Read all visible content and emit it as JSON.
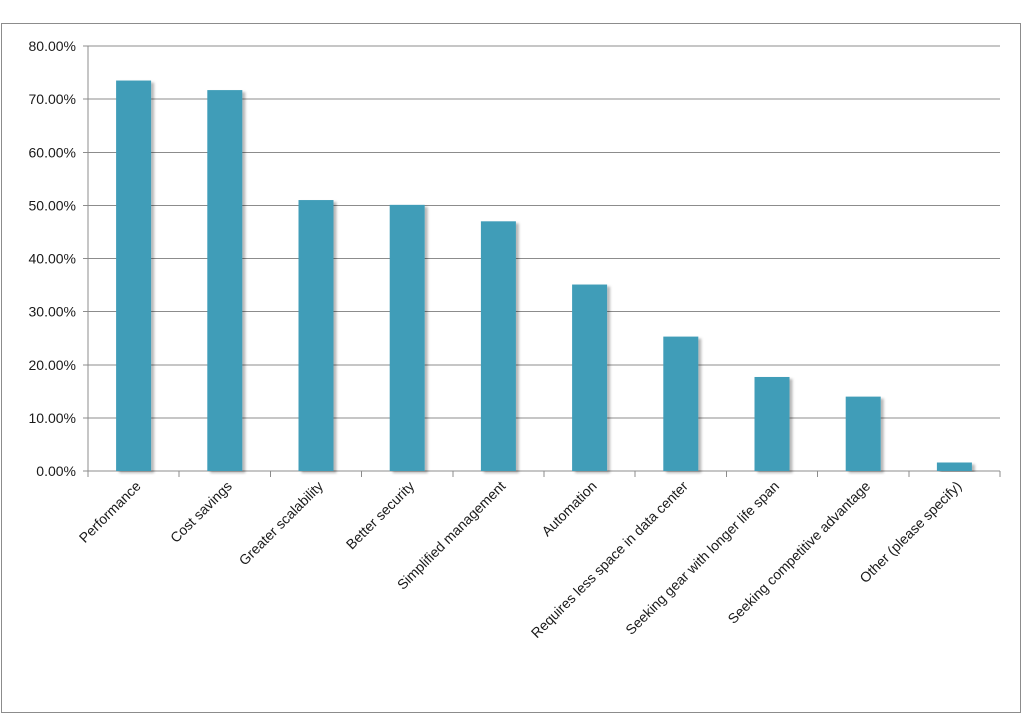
{
  "chart_data": {
    "type": "bar",
    "title": "",
    "xlabel": "",
    "ylabel": "",
    "categories": [
      "Performance",
      "Cost savings",
      "Greater scalability",
      "Better security",
      "Simplified management",
      "Automation",
      "Requires less space in data center",
      "Seeking gear with longer life span",
      "Seeking competitive advantage",
      "Other (please specify)"
    ],
    "values": [
      73.5,
      71.7,
      51.0,
      50.1,
      47.0,
      35.1,
      25.3,
      17.7,
      14.0,
      1.6
    ],
    "ylim": [
      0,
      80
    ],
    "y_ticks": [
      0,
      10,
      20,
      30,
      40,
      50,
      60,
      70,
      80
    ],
    "y_tick_labels": [
      "0.00%",
      "10.00%",
      "20.00%",
      "30.00%",
      "40.00%",
      "50.00%",
      "60.00%",
      "70.00%",
      "80.00%"
    ],
    "bar_color": "#3f9db8",
    "grid": true,
    "legend": "none"
  }
}
